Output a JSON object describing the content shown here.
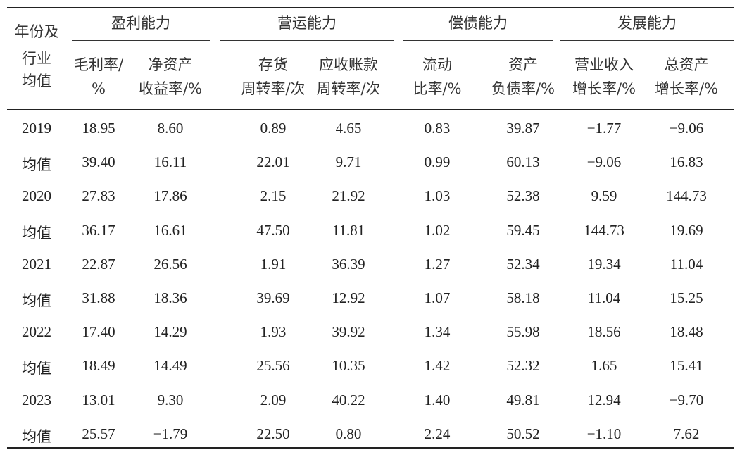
{
  "table": {
    "corner": [
      "年份及",
      "行业",
      "均值"
    ],
    "groups": [
      "盈利能力",
      "营运能力",
      "偿债能力",
      "发展能力"
    ],
    "columns": [
      [
        "毛利率/",
        "%"
      ],
      [
        "净资产",
        "收益率/%"
      ],
      [
        "存货",
        "周转率/次"
      ],
      [
        "应收账款",
        "周转率/次"
      ],
      [
        "流动",
        "比率/%"
      ],
      [
        "资产",
        "负债率/%"
      ],
      [
        "营业收入",
        "增长率/%"
      ],
      [
        "总资产",
        "增长率/%"
      ]
    ],
    "rows": [
      {
        "label": "2019",
        "values": [
          "18.95",
          "8.60",
          "0.89",
          "4.65",
          "0.83",
          "39.87",
          "−1.77",
          "−9.06"
        ]
      },
      {
        "label": "均值",
        "values": [
          "39.40",
          "16.11",
          "22.01",
          "9.71",
          "0.99",
          "60.13",
          "−9.06",
          "16.83"
        ]
      },
      {
        "label": "2020",
        "values": [
          "27.83",
          "17.86",
          "2.15",
          "21.92",
          "1.03",
          "52.38",
          "9.59",
          "144.73"
        ]
      },
      {
        "label": "均值",
        "values": [
          "36.17",
          "16.61",
          "47.50",
          "11.81",
          "1.02",
          "59.45",
          "144.73",
          "19.69"
        ]
      },
      {
        "label": "2021",
        "values": [
          "22.87",
          "26.56",
          "1.91",
          "36.39",
          "1.27",
          "52.34",
          "19.34",
          "11.04"
        ]
      },
      {
        "label": "均值",
        "values": [
          "31.88",
          "18.36",
          "39.69",
          "12.92",
          "1.07",
          "58.18",
          "11.04",
          "15.25"
        ]
      },
      {
        "label": "2022",
        "values": [
          "17.40",
          "14.29",
          "1.93",
          "39.92",
          "1.34",
          "55.98",
          "18.56",
          "18.48"
        ]
      },
      {
        "label": "均值",
        "values": [
          "18.49",
          "14.49",
          "25.56",
          "10.35",
          "1.42",
          "52.32",
          "1.65",
          "15.41"
        ]
      },
      {
        "label": "2023",
        "values": [
          "13.01",
          "9.30",
          "2.09",
          "40.22",
          "1.40",
          "49.81",
          "12.94",
          "−9.70"
        ]
      },
      {
        "label": "均值",
        "values": [
          "25.57",
          "−1.79",
          "22.50",
          "0.80",
          "2.24",
          "50.52",
          "−1.10",
          "7.62"
        ]
      }
    ]
  }
}
